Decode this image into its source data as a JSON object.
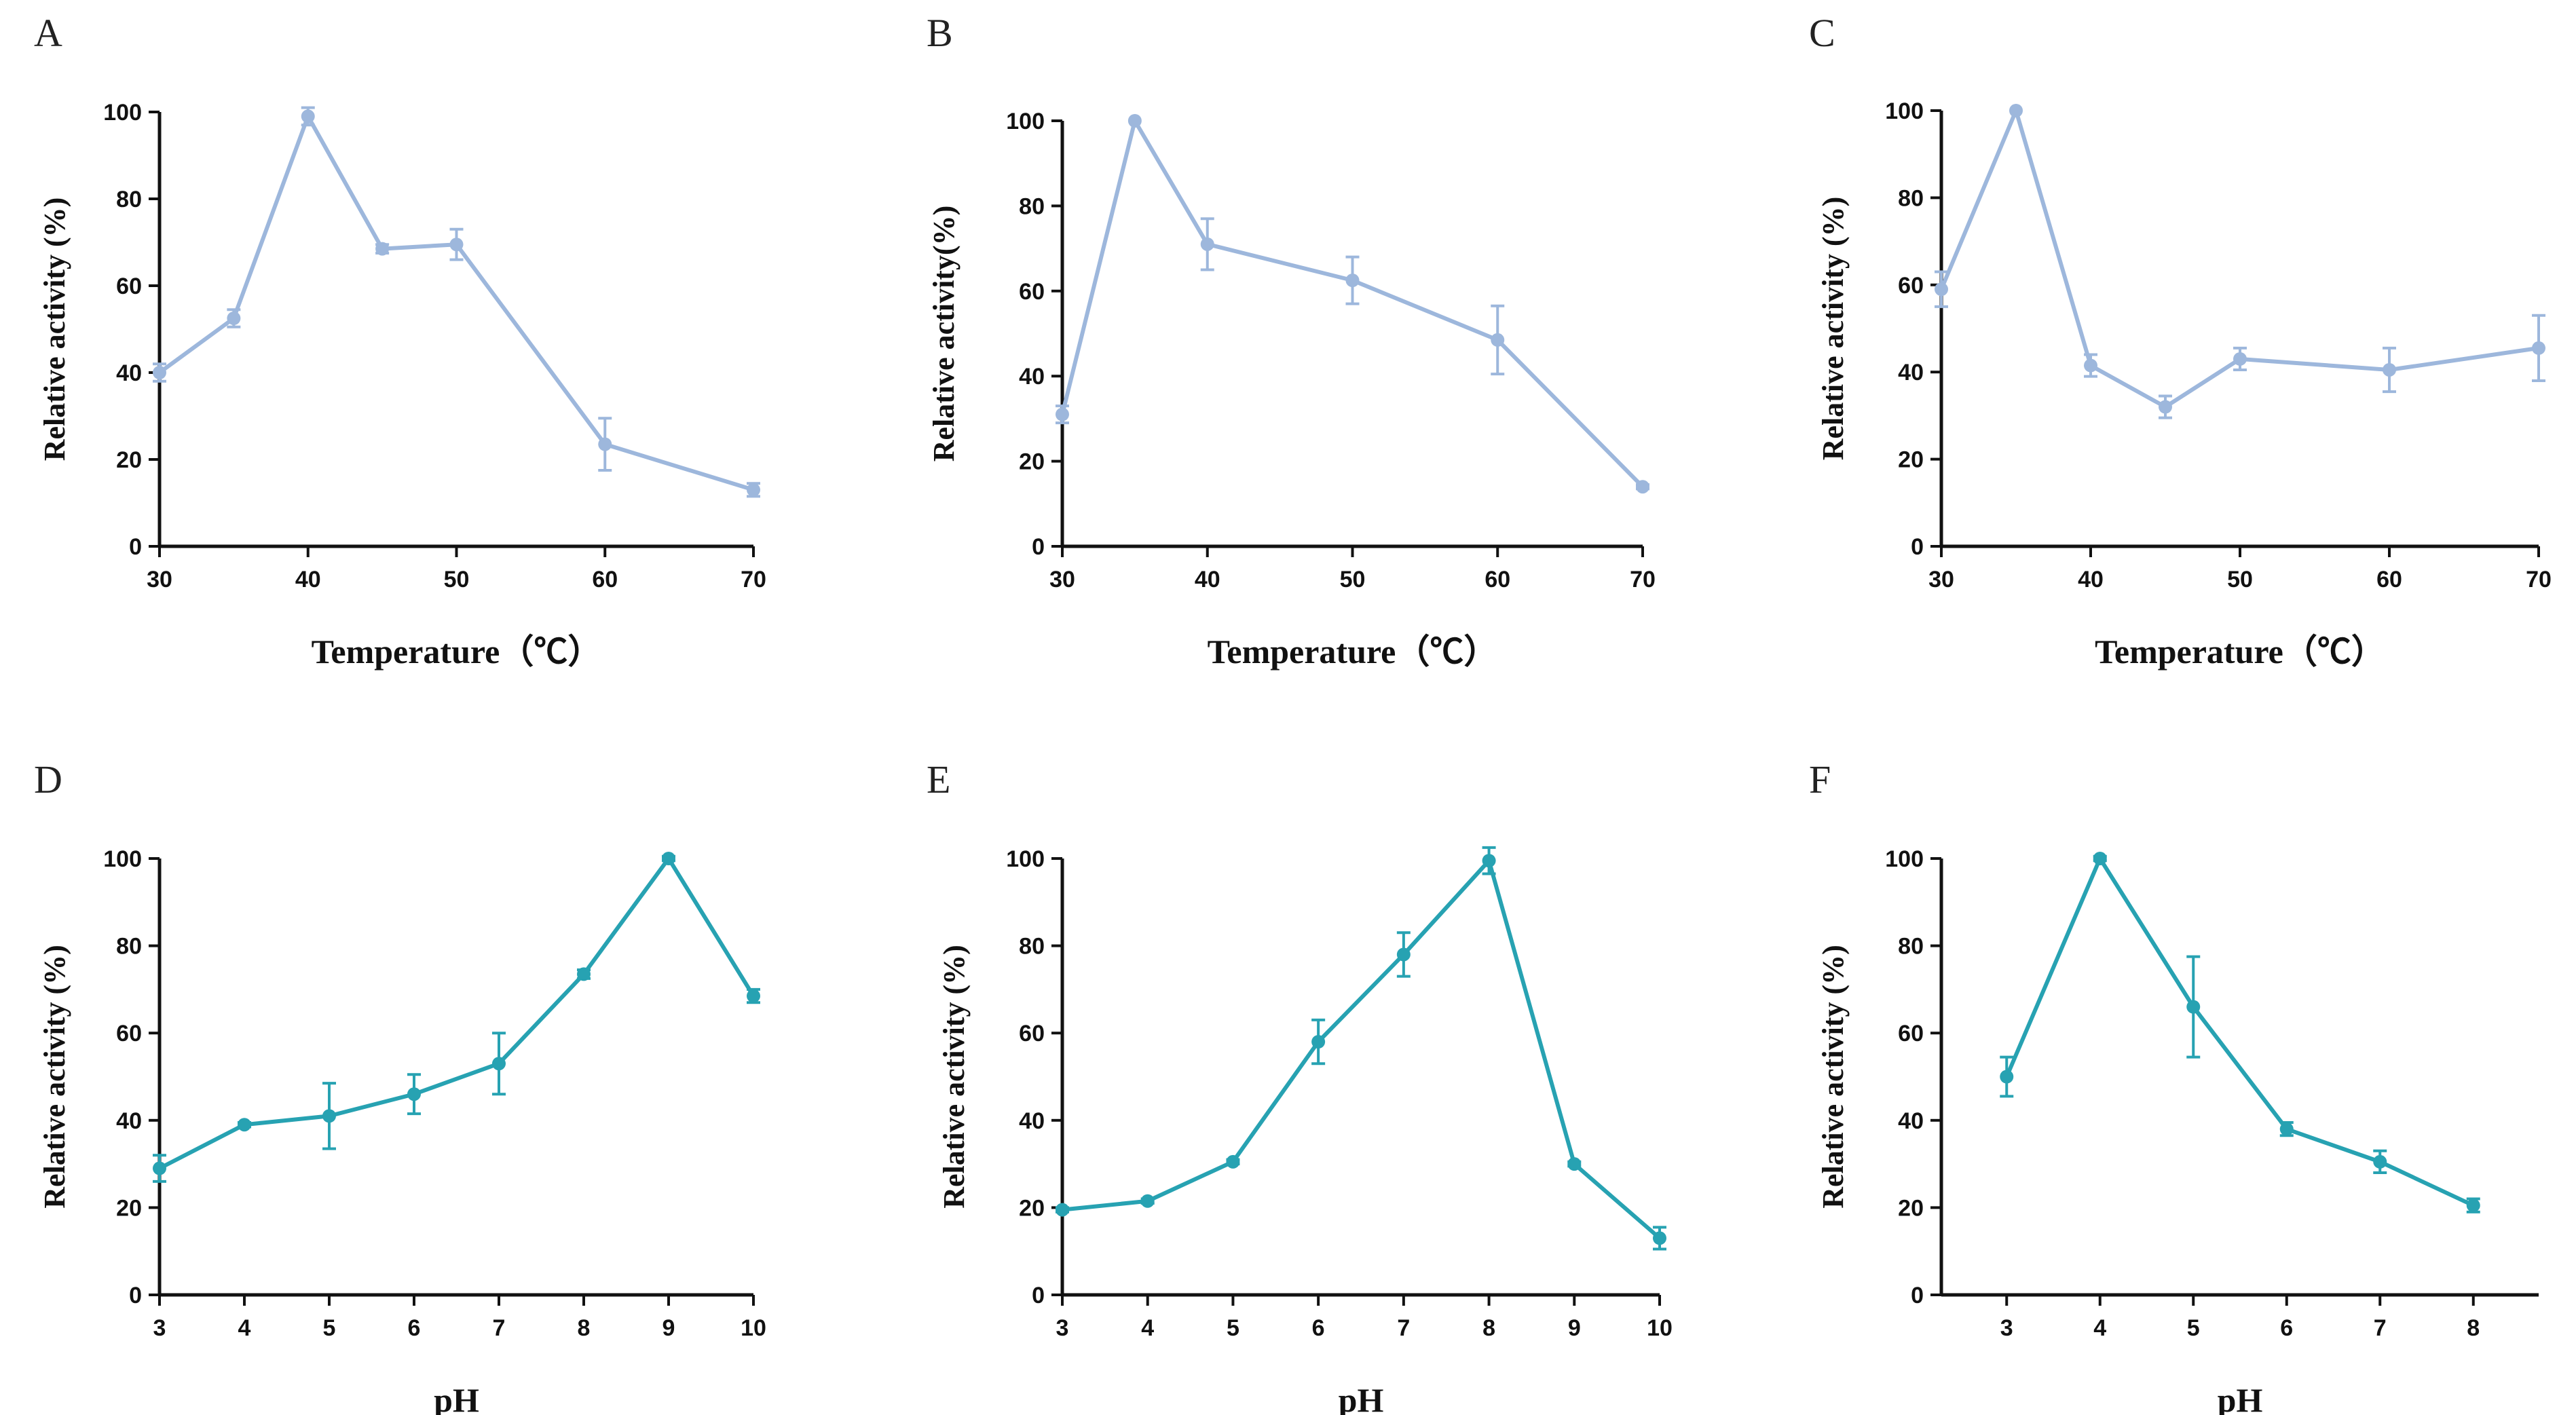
{
  "colors": {
    "temperature_series": "#9db7dc",
    "ph_series": "#27a2b2",
    "axis": "#111111"
  },
  "chart_data": [
    {
      "type": "line",
      "panel": "A",
      "xlabel": "Temperature（℃）",
      "ylabel": "Relative activity (%)",
      "xlim": [
        30,
        70
      ],
      "xticks": [
        30,
        40,
        50,
        60,
        70
      ],
      "ylim": [
        0,
        100
      ],
      "yticks": [
        0,
        20,
        40,
        60,
        80,
        100
      ],
      "x": [
        30,
        35,
        40,
        45,
        50,
        60,
        70
      ],
      "values": [
        40,
        52.5,
        99,
        68.5,
        69.5,
        23.5,
        13
      ],
      "errors": [
        2,
        2,
        2,
        1,
        3.5,
        6,
        1.5
      ],
      "series_color": "temperature_series"
    },
    {
      "type": "line",
      "panel": "B",
      "xlabel": "Temperature（℃）",
      "ylabel": "Relative activity(%)",
      "xlim": [
        30,
        70
      ],
      "xticks": [
        30,
        40,
        50,
        60,
        70
      ],
      "ylim": [
        0,
        100
      ],
      "yticks": [
        0,
        20,
        40,
        60,
        80,
        100
      ],
      "x": [
        30,
        35,
        40,
        50,
        60,
        70
      ],
      "values": [
        31,
        100,
        71,
        62.5,
        48.5,
        14
      ],
      "errors": [
        2,
        0,
        6,
        5.5,
        8,
        0.5
      ],
      "series_color": "temperature_series"
    },
    {
      "type": "line",
      "panel": "C",
      "xlabel": "Temperature（℃）",
      "ylabel": "Relative activity (%)",
      "xlim": [
        30,
        70
      ],
      "xticks": [
        30,
        40,
        50,
        60,
        70
      ],
      "ylim": [
        0,
        100
      ],
      "yticks": [
        0,
        20,
        40,
        60,
        80,
        100
      ],
      "x": [
        30,
        35,
        40,
        45,
        50,
        60,
        70
      ],
      "values": [
        59,
        100,
        41.5,
        32,
        43,
        40.5,
        45.5
      ],
      "errors": [
        4,
        0,
        2.5,
        2.5,
        2.5,
        5,
        7.5
      ],
      "series_color": "temperature_series"
    },
    {
      "type": "line",
      "panel": "D",
      "xlabel": "pH",
      "ylabel": "Relative activity (%)",
      "xlim": [
        3,
        10
      ],
      "xticks": [
        3,
        4,
        5,
        6,
        7,
        8,
        9,
        10
      ],
      "ylim": [
        0,
        100
      ],
      "yticks": [
        0,
        20,
        40,
        60,
        80,
        100
      ],
      "x": [
        3,
        4,
        5,
        6,
        7,
        8,
        9,
        10
      ],
      "values": [
        29,
        39,
        41,
        46,
        53,
        73.5,
        100,
        68.5
      ],
      "errors": [
        3,
        0.5,
        7.5,
        4.5,
        7,
        1,
        0.5,
        1.5
      ],
      "series_color": "ph_series"
    },
    {
      "type": "line",
      "panel": "E",
      "xlabel": "pH",
      "ylabel": "Relative activity (%)",
      "xlim": [
        3,
        10
      ],
      "xticks": [
        3,
        4,
        5,
        6,
        7,
        8,
        9,
        10
      ],
      "ylim": [
        0,
        100
      ],
      "yticks": [
        0,
        20,
        40,
        60,
        80,
        100
      ],
      "x": [
        3,
        4,
        5,
        6,
        7,
        8,
        9,
        10
      ],
      "values": [
        19.5,
        21.5,
        30.5,
        58,
        78,
        99.5,
        30,
        13
      ],
      "errors": [
        0.5,
        0.5,
        0.5,
        5,
        5,
        3,
        0.5,
        2.5
      ],
      "series_color": "ph_series"
    },
    {
      "type": "line",
      "panel": "F",
      "xlabel": "pH",
      "ylabel": "Relative activity (%)",
      "xlim": [
        2.3,
        8.7
      ],
      "xticks": [
        3,
        4,
        5,
        6,
        7,
        8
      ],
      "ylim": [
        0,
        100
      ],
      "yticks": [
        0,
        20,
        40,
        60,
        80,
        100
      ],
      "x": [
        3,
        4,
        5,
        6,
        7,
        8
      ],
      "values": [
        50,
        100,
        66,
        38,
        30.5,
        20.5
      ],
      "errors": [
        4.5,
        0.5,
        11.5,
        1.5,
        2.5,
        1.5
      ],
      "series_color": "ph_series"
    }
  ]
}
